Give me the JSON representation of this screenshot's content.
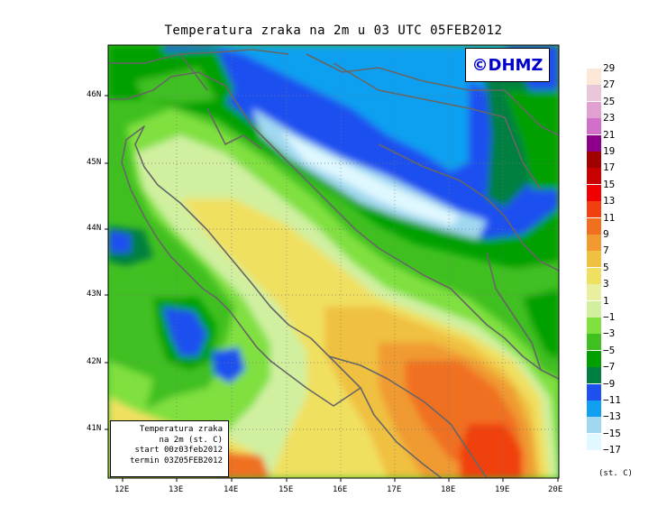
{
  "title": "Temperatura zraka na 2m u 03 UTC 05FEB2012",
  "logo": "©DHMZ",
  "info_box": {
    "line1": "Temperatura zraka",
    "line2": "na 2m (st. C)",
    "line3": "start 00z03feb2012",
    "line4": "termin 03Z05FEB2012"
  },
  "lat_labels": [
    "46N",
    "45N",
    "44N",
    "43N",
    "42N",
    "41N"
  ],
  "lon_labels": [
    "12E",
    "13E",
    "14E",
    "15E",
    "16E",
    "17E",
    "18E",
    "19E",
    "20E"
  ],
  "colorbar": {
    "units": "(st. C)",
    "labels": [
      "29",
      "27",
      "25",
      "23",
      "21",
      "19",
      "17",
      "15",
      "13",
      "11",
      "9",
      "7",
      "5",
      "3",
      "1",
      "−1",
      "−3",
      "−5",
      "−7",
      "−9",
      "−11",
      "−13",
      "−15",
      "−17"
    ],
    "colors": [
      "#fde8d8",
      "#e8c8d8",
      "#e0a0d0",
      "#d070c8",
      "#8c008c",
      "#a00000",
      "#c80000",
      "#f00000",
      "#f04010",
      "#f07020",
      "#f09a30",
      "#f0c040",
      "#f0e060",
      "#e8f0a0",
      "#d0f0a0",
      "#80e040",
      "#40c020",
      "#00a000",
      "#008040",
      "#1e50f0",
      "#10a0f0",
      "#a0d8f0",
      "#e0f8ff"
    ]
  }
}
